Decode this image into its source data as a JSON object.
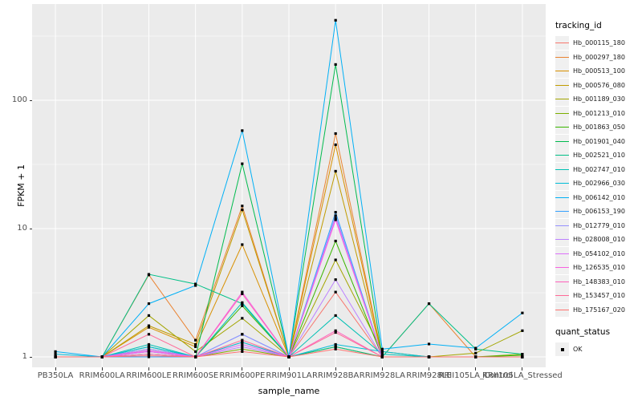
{
  "axes": {
    "x_title": "sample_name",
    "y_title": "FPKM + 1",
    "y_ticks": [
      {
        "label": "100",
        "value": 100
      },
      {
        "label": "10",
        "value": 10
      },
      {
        "label": "1",
        "value": 1
      }
    ]
  },
  "legend": {
    "tracking_title": "tracking_id",
    "quant_title": "quant_status",
    "quant_items": [
      {
        "label": "OK",
        "marker": "black-square"
      }
    ]
  },
  "style": {
    "panel_bg": "#EBEBEB",
    "grid_color": "#FFFFFF",
    "point_color": "#000000",
    "axis_text_color": "#4d4d4d"
  },
  "chart_data": {
    "type": "line",
    "title": "",
    "xlabel": "sample_name",
    "ylabel": "FPKM + 1",
    "y_scale": "log10",
    "ylim": [
      1,
      560
    ],
    "grid": true,
    "legend_position": "right",
    "categories": [
      "PB350LA",
      "RRIM600LA",
      "RRIM600LE",
      "RRIM600SE",
      "RRIM600PE",
      "RRIM901LA",
      "RRIM928BA",
      "RRIM928LA",
      "RRIM928LE",
      "RRII105LA_Control",
      "RRII105LA_Stressed"
    ],
    "series": [
      {
        "name": "Hb_000115_180",
        "color": "#F8766D",
        "values": [
          1,
          1,
          1.15,
          1,
          1.3,
          1,
          3.2,
          1,
          1,
          1,
          1
        ]
      },
      {
        "name": "Hb_000297_180",
        "color": "#EA8331",
        "values": [
          1,
          1,
          4.35,
          1.35,
          15,
          1,
          55,
          1,
          2.6,
          1,
          1
        ]
      },
      {
        "name": "Hb_000513_100",
        "color": "#D89000",
        "values": [
          1,
          1,
          1.7,
          1.2,
          7.5,
          1,
          45,
          1,
          1,
          1,
          1
        ]
      },
      {
        "name": "Hb_000576_080",
        "color": "#C09B00",
        "values": [
          1,
          1,
          1.75,
          1.25,
          14,
          1,
          28,
          1,
          1,
          1,
          1
        ]
      },
      {
        "name": "Hb_001189_030",
        "color": "#A3A500",
        "values": [
          1,
          1,
          2.1,
          1.1,
          2.0,
          1,
          5.7,
          1.1,
          1,
          1.07,
          1.6
        ]
      },
      {
        "name": "Hb_001213_010",
        "color": "#7CAE00",
        "values": [
          1,
          1,
          1.1,
          1,
          1.15,
          1,
          1.2,
          1,
          1,
          1,
          1.05
        ]
      },
      {
        "name": "Hb_001863_050",
        "color": "#39B600",
        "values": [
          1,
          1,
          1.05,
          1,
          2.5,
          1,
          8,
          1,
          1,
          1,
          1.03
        ]
      },
      {
        "name": "Hb_001901_040",
        "color": "#00BB4E",
        "values": [
          1,
          1,
          1.2,
          1,
          32,
          1,
          190,
          1,
          1,
          1,
          1
        ]
      },
      {
        "name": "Hb_002521_010",
        "color": "#00C087",
        "values": [
          1,
          1,
          4.4,
          3.7,
          2.6,
          1,
          1.2,
          1,
          2.6,
          1.15,
          1.05
        ]
      },
      {
        "name": "Hb_002747_010",
        "color": "#00C0B4",
        "values": [
          1,
          1,
          1.25,
          1,
          2.65,
          1,
          2.1,
          1.05,
          1,
          1,
          1
        ]
      },
      {
        "name": "Hb_002966_030",
        "color": "#00BCD8",
        "values": [
          1.05,
          1,
          1.2,
          1,
          1.3,
          1,
          1.25,
          1.1,
          1,
          1,
          1
        ]
      },
      {
        "name": "Hb_006142_010",
        "color": "#00B0F6",
        "values": [
          1.1,
          1,
          2.6,
          3.6,
          58,
          1,
          420,
          1.15,
          1.26,
          1.17,
          2.2
        ]
      },
      {
        "name": "Hb_006153_190",
        "color": "#35A2FF",
        "values": [
          1,
          1,
          1,
          1,
          1.5,
          1,
          13.4,
          1,
          1,
          1,
          1
        ]
      },
      {
        "name": "Hb_012779_010",
        "color": "#9590FF",
        "values": [
          1,
          1,
          1.15,
          1,
          1.5,
          1,
          12.6,
          1,
          1,
          1,
          1
        ]
      },
      {
        "name": "Hb_028008_010",
        "color": "#BC80FF",
        "values": [
          1,
          1,
          1.1,
          1,
          1.2,
          1,
          4.0,
          1,
          1,
          1,
          1
        ]
      },
      {
        "name": "Hb_054102_010",
        "color": "#DC71FA",
        "values": [
          1,
          1,
          1.1,
          1,
          1.25,
          1,
          12.0,
          1,
          1,
          1,
          1
        ]
      },
      {
        "name": "Hb_126535_010",
        "color": "#F763E0",
        "values": [
          1,
          1,
          1.12,
          1,
          3.2,
          1,
          11.7,
          1,
          1,
          1,
          1
        ]
      },
      {
        "name": "Hb_148383_010",
        "color": "#FF62BC",
        "values": [
          1,
          1,
          1.05,
          1,
          3.1,
          1,
          1.6,
          1,
          1,
          1,
          1
        ]
      },
      {
        "name": "Hb_153457_010",
        "color": "#FF6A98",
        "values": [
          1,
          1,
          1.5,
          1,
          1.35,
          1,
          1.55,
          1,
          1,
          1,
          1
        ]
      },
      {
        "name": "Hb_175167_020",
        "color": "#FF7370",
        "values": [
          1,
          1,
          1.02,
          1,
          1.1,
          1,
          1.15,
          1,
          1,
          1,
          1
        ]
      }
    ]
  }
}
